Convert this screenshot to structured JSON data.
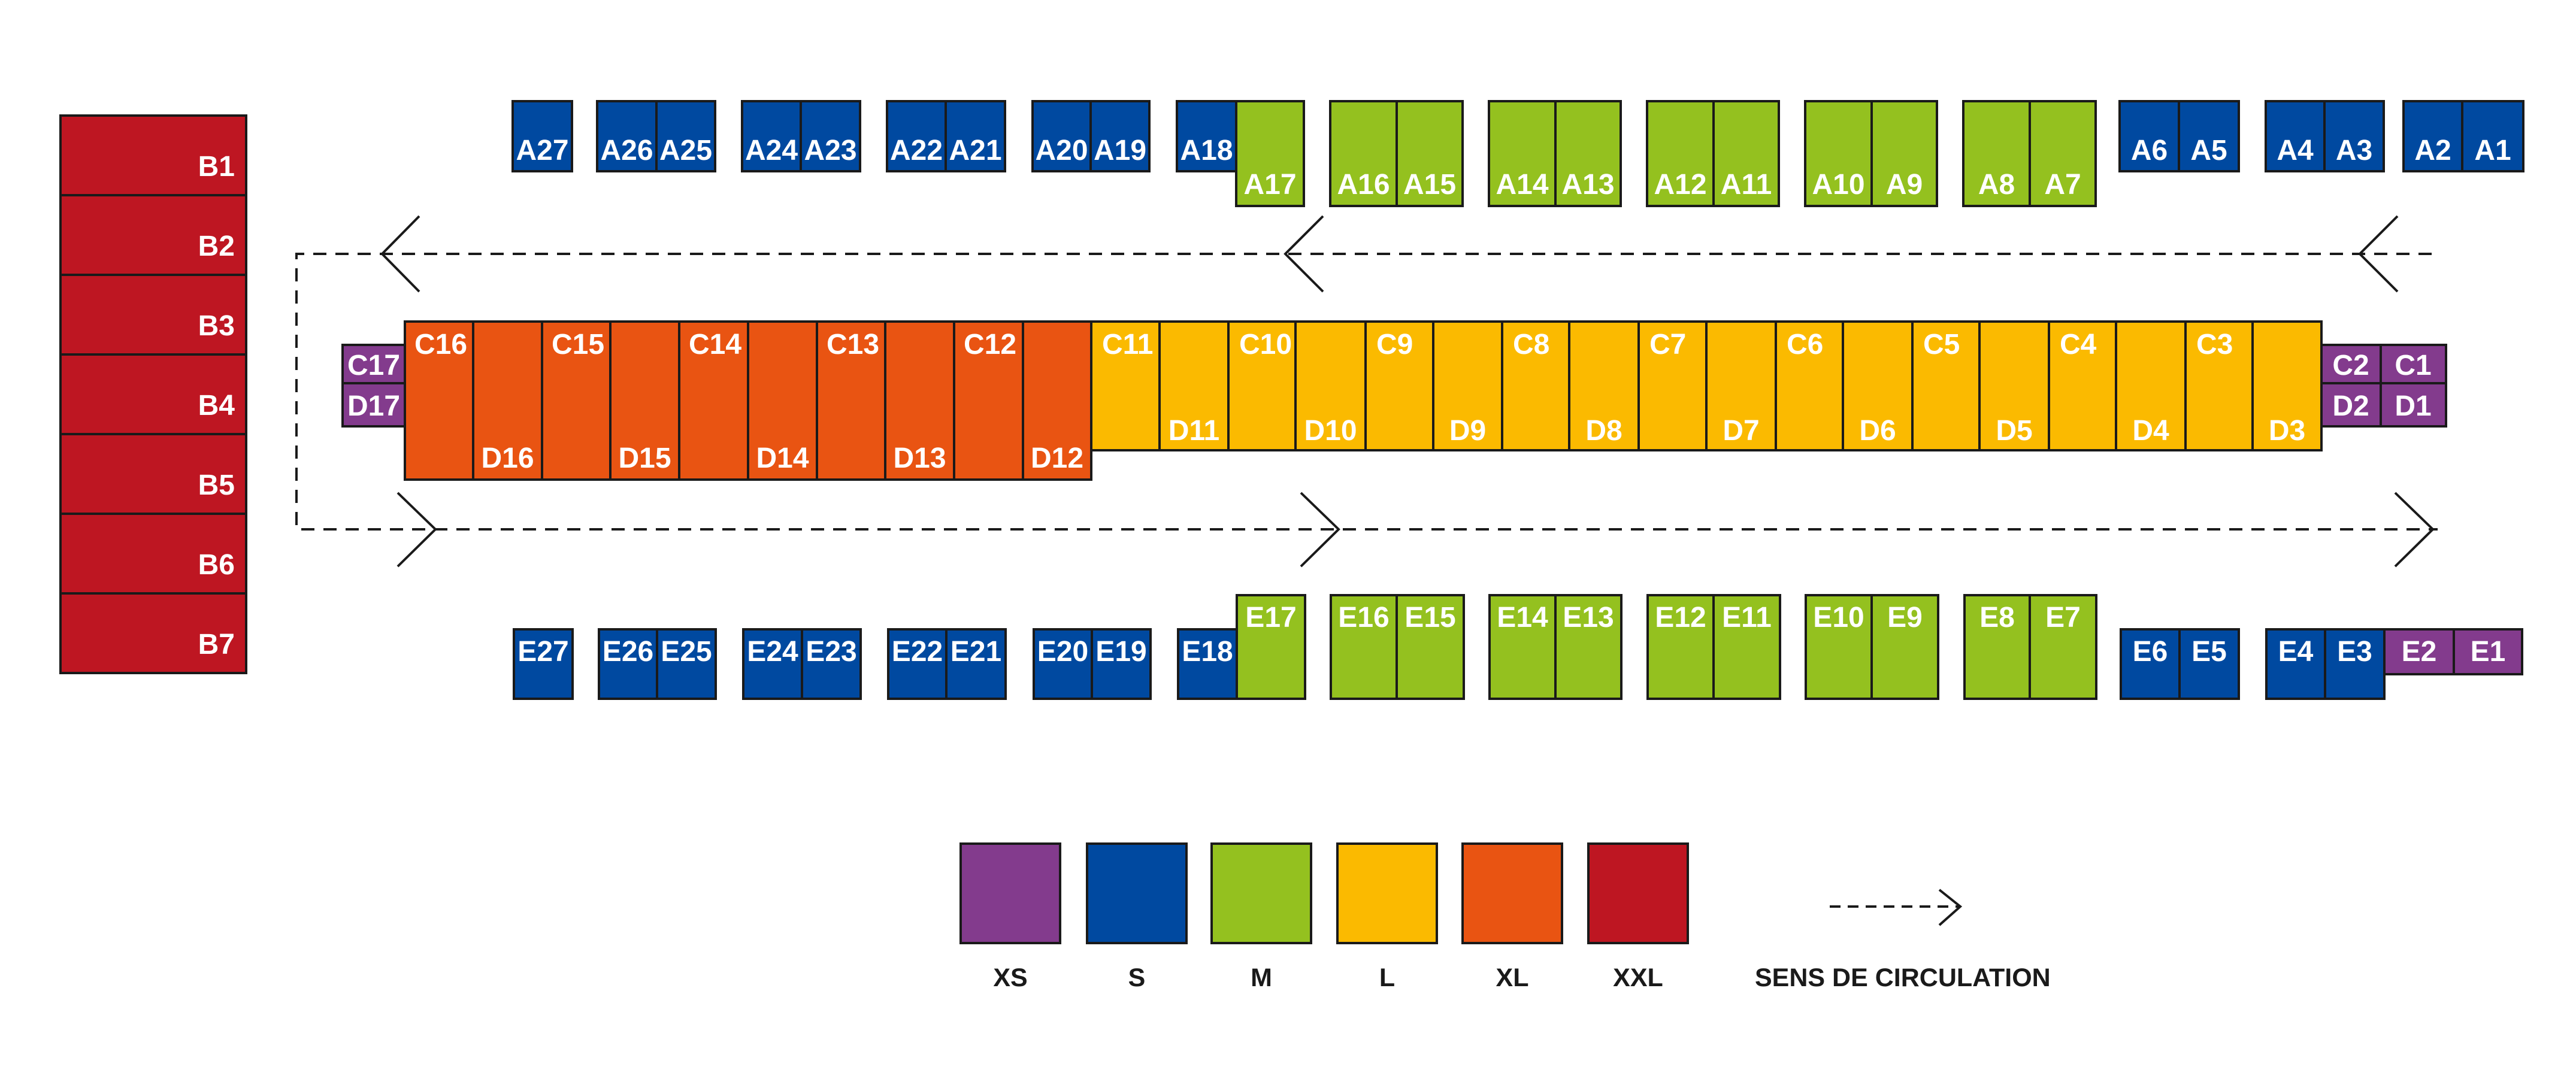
{
  "colors": {
    "XS": "#833B8D",
    "S": "#0049A0",
    "M": "#94C11F",
    "L": "#FBBA00",
    "XL": "#E95412",
    "XXL": "#BE1622",
    "outline": "#1a1a1a",
    "label": "#ffffff"
  },
  "rows": {
    "A": {
      "S": [
        "A27",
        "A26",
        "A25",
        "A24",
        "A23",
        "A22",
        "A21",
        "A20",
        "A19",
        "A18",
        "A6",
        "A5",
        "A4",
        "A3",
        "A2",
        "A1"
      ],
      "M": [
        "A17",
        "A16",
        "A15",
        "A14",
        "A13",
        "A12",
        "A11",
        "A10",
        "A9",
        "A8",
        "A7"
      ]
    },
    "B": {
      "XXL": [
        "B1",
        "B2",
        "B3",
        "B4",
        "B5",
        "B6",
        "B7"
      ]
    },
    "C": {
      "XS": [
        "C17",
        "C2",
        "C1"
      ],
      "XL": [
        "C16",
        "C15",
        "C14",
        "C13",
        "C12"
      ],
      "L": [
        "C11",
        "C10",
        "C9",
        "C8",
        "C7",
        "C6",
        "C5",
        "C4",
        "C3"
      ]
    },
    "D": {
      "XS": [
        "D17",
        "D2",
        "D1"
      ],
      "XL": [
        "D16",
        "D15",
        "D14",
        "D13",
        "D12"
      ],
      "L": [
        "D11",
        "D10",
        "D9",
        "D8",
        "D7",
        "D6",
        "D5",
        "D4",
        "D3"
      ]
    },
    "E": {
      "S": [
        "E27",
        "E26",
        "E25",
        "E24",
        "E23",
        "E22",
        "E21",
        "E20",
        "E19",
        "E18",
        "E6",
        "E5",
        "E4",
        "E3"
      ],
      "M": [
        "E17",
        "E16",
        "E15",
        "E14",
        "E13",
        "E12",
        "E11",
        "E10",
        "E9",
        "E8",
        "E7"
      ],
      "XS": [
        "E2",
        "E1"
      ]
    }
  },
  "legend": {
    "sizes": [
      "XS",
      "S",
      "M",
      "L",
      "XL",
      "XXL"
    ],
    "direction_label": "SENS DE CIRCULATION"
  }
}
